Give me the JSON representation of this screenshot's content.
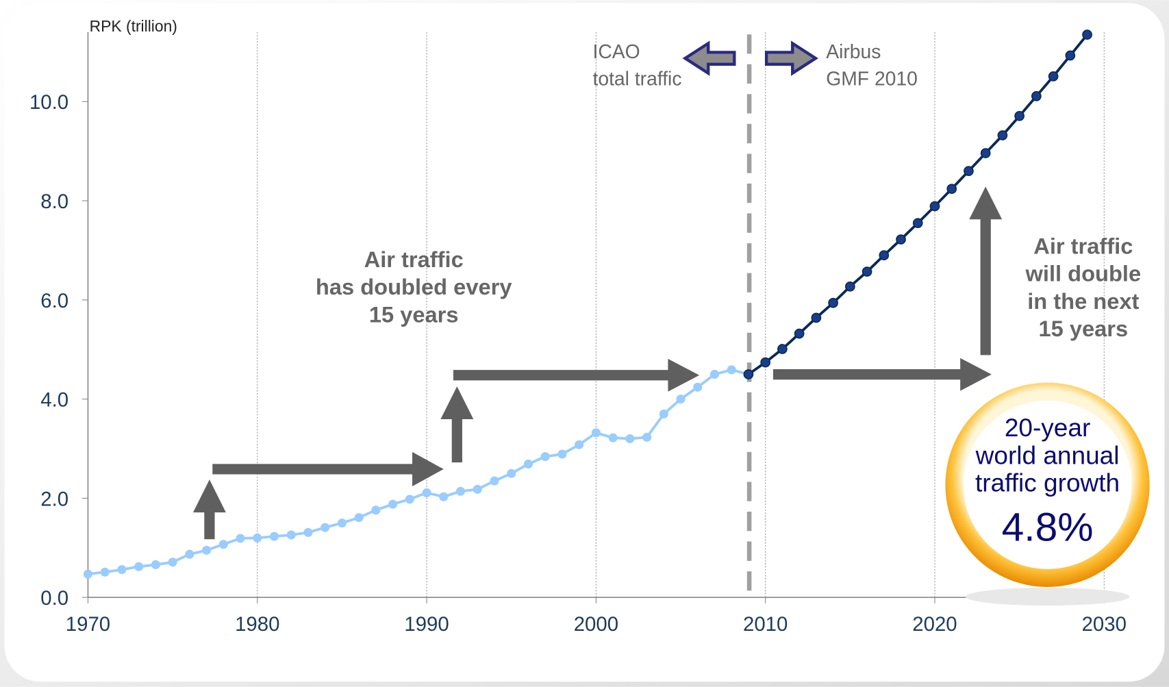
{
  "chart_data": {
    "type": "line",
    "y_axis_label": "RPK (trillion)",
    "x": [
      1970,
      1971,
      1972,
      1973,
      1974,
      1975,
      1976,
      1977,
      1978,
      1979,
      1980,
      1981,
      1982,
      1983,
      1984,
      1985,
      1986,
      1987,
      1988,
      1989,
      1990,
      1991,
      1992,
      1993,
      1994,
      1995,
      1996,
      1997,
      1998,
      1999,
      2000,
      2001,
      2002,
      2003,
      2004,
      2005,
      2006,
      2007,
      2008,
      2009,
      2010,
      2011,
      2012,
      2013,
      2014,
      2015,
      2016,
      2017,
      2018,
      2019,
      2020,
      2021,
      2022,
      2023,
      2024,
      2025,
      2026,
      2027,
      2028,
      2029
    ],
    "series": [
      {
        "color": "#99ccff",
        "marker_color": "#99ccff",
        "values": [
          0.47,
          0.51,
          0.56,
          0.62,
          0.66,
          0.71,
          0.87,
          0.95,
          1.07,
          1.19,
          1.2,
          1.23,
          1.26,
          1.31,
          1.41,
          1.5,
          1.61,
          1.76,
          1.88,
          1.98,
          2.11,
          2.03,
          2.14,
          2.18,
          2.35,
          2.5,
          2.69,
          2.84,
          2.89,
          3.08,
          3.32,
          3.22,
          3.2,
          3.23,
          3.7,
          4.0,
          4.24,
          4.5,
          4.59,
          4.5,
          null,
          null,
          null,
          null,
          null,
          null,
          null,
          null,
          null,
          null,
          null,
          null,
          null,
          null,
          null,
          null,
          null,
          null,
          null,
          null
        ]
      },
      {
        "color": "#0a2a55",
        "marker_color": "#1a3e8a",
        "values": [
          null,
          null,
          null,
          null,
          null,
          null,
          null,
          null,
          null,
          null,
          null,
          null,
          null,
          null,
          null,
          null,
          null,
          null,
          null,
          null,
          null,
          null,
          null,
          null,
          null,
          null,
          null,
          null,
          null,
          null,
          null,
          null,
          null,
          null,
          null,
          null,
          null,
          null,
          null,
          4.5,
          4.74,
          5.01,
          5.32,
          5.64,
          5.94,
          6.27,
          6.57,
          6.9,
          7.22,
          7.55,
          7.89,
          8.24,
          8.6,
          8.96,
          9.32,
          9.71,
          10.11,
          10.51,
          10.93,
          11.35
        ]
      }
    ],
    "xlim": [
      1970,
      2030
    ],
    "ylim": [
      0,
      11.4
    ],
    "xticks": [
      1970,
      1980,
      1990,
      2000,
      2010,
      2020,
      2030
    ],
    "yticks": [
      {
        "value": 0,
        "label": "0.0"
      },
      {
        "value": 2,
        "label": "2.0"
      },
      {
        "value": 4,
        "label": "4.0"
      },
      {
        "value": 6,
        "label": "6.0"
      },
      {
        "value": 8,
        "label": "8.0"
      },
      {
        "value": 10,
        "label": "10.0"
      }
    ],
    "grid": true,
    "annotations": [
      {
        "lines": [
          "ICAO",
          "total traffic"
        ]
      },
      {
        "lines": [
          "Airbus",
          "GMF 2010"
        ]
      },
      {
        "lines": [
          "Air traffic",
          "has doubled every",
          "15 years"
        ]
      },
      {
        "lines": [
          "Air traffic",
          "will double",
          "in the next",
          "15 years"
        ]
      }
    ],
    "badge": {
      "lines": [
        "20-year",
        "world annual",
        "traffic growth"
      ],
      "value": "4.8%"
    }
  }
}
